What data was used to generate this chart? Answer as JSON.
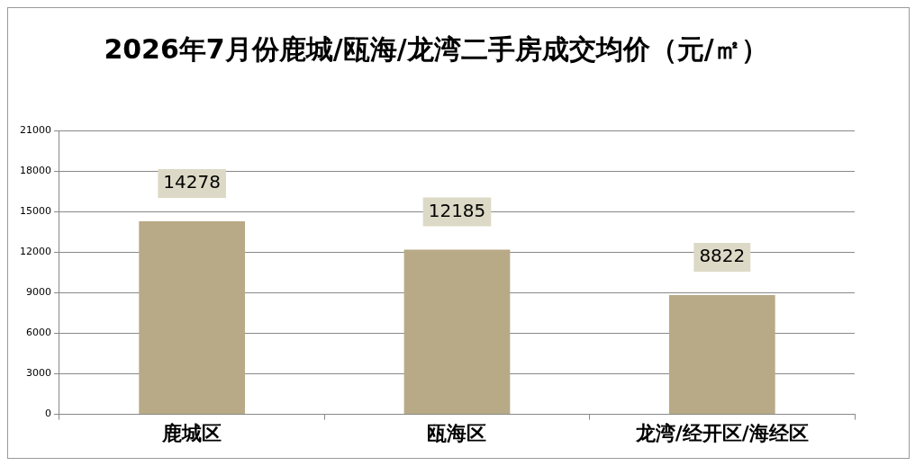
{
  "chart_data": {
    "type": "bar",
    "title": "2026年7月份鹿城/瓯海/龙湾二手房成交均价（元/㎡）",
    "categories": [
      "鹿城区",
      "瓯海区",
      "龙湾/经开区/海经区"
    ],
    "values": [
      14278,
      12185,
      8822
    ],
    "color": "#b8aa86",
    "ylim": [
      0,
      21000
    ],
    "yticks": [
      0,
      3000,
      6000,
      9000,
      12000,
      15000,
      18000,
      21000
    ],
    "grid": "y",
    "legend": false,
    "data_labels": true
  }
}
